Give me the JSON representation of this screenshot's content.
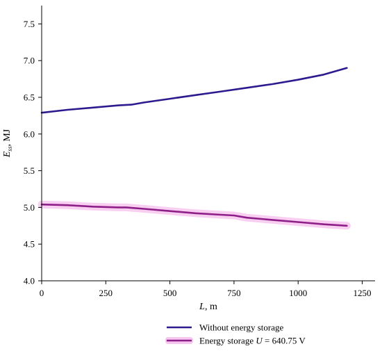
{
  "chart_data": {
    "type": "line",
    "xlabel_var": "L",
    "xlabel_unit": ", m",
    "ylabel_var": "E",
    "ylabel_sub": "ss",
    "ylabel_unit": ", MJ",
    "xlim": [
      0,
      1300
    ],
    "ylim": [
      4.0,
      7.75
    ],
    "x_ticks": [
      0,
      250,
      500,
      750,
      1000,
      1250
    ],
    "y_ticks": [
      4.0,
      4.5,
      5.0,
      5.5,
      6.0,
      6.5,
      7.0,
      7.5
    ],
    "x_tick_labels": [
      "0",
      "250",
      "500",
      "750",
      "1000",
      "1250"
    ],
    "y_tick_labels": [
      "4.0",
      "4.5",
      "5.0",
      "5.5",
      "6.0",
      "6.5",
      "7.0",
      "7.5"
    ],
    "grid": false,
    "legend_position": "bottom",
    "series": [
      {
        "name": "Without energy storage",
        "color": "#2e1a8e",
        "band": false,
        "x": [
          0,
          100,
          200,
          300,
          350,
          400,
          500,
          600,
          700,
          800,
          900,
          1000,
          1100,
          1190
        ],
        "y": [
          6.29,
          6.33,
          6.36,
          6.39,
          6.4,
          6.43,
          6.48,
          6.53,
          6.58,
          6.63,
          6.68,
          6.74,
          6.81,
          6.9
        ]
      },
      {
        "name_prefix": "Energy storage ",
        "name_var": "U",
        "name_suffix": " = 640.75 V",
        "color": "#8e1f88",
        "band": true,
        "band_color": "#f7c6ee",
        "x": [
          0,
          100,
          200,
          300,
          330,
          400,
          500,
          600,
          700,
          750,
          800,
          900,
          1000,
          1100,
          1190
        ],
        "y": [
          5.04,
          5.03,
          5.01,
          5.0,
          5.0,
          4.98,
          4.95,
          4.92,
          4.9,
          4.89,
          4.86,
          4.83,
          4.8,
          4.77,
          4.75
        ]
      }
    ]
  }
}
